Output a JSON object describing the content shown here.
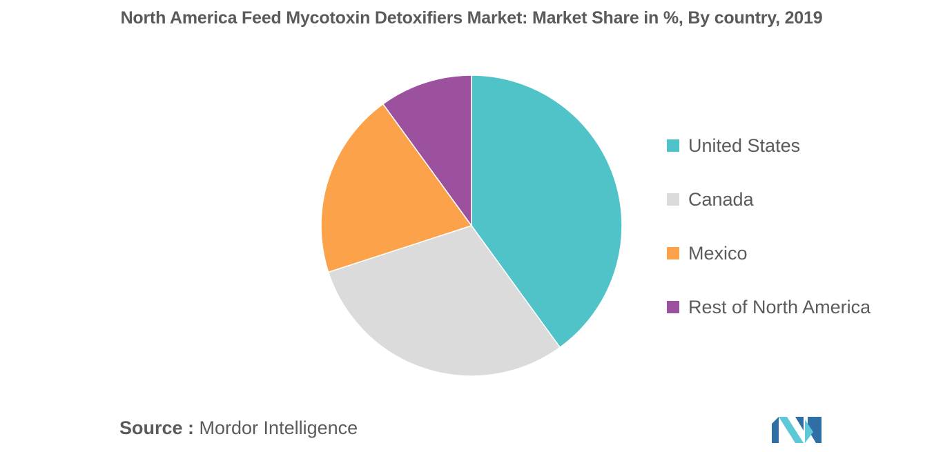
{
  "chart_data": {
    "type": "pie",
    "title": "North America Feed Mycotoxin Detoxifiers Market: Market Share in %, By country, 2019",
    "categories": [
      "United States",
      "Canada",
      "Mexico",
      "Rest of North America"
    ],
    "values": [
      40,
      30,
      20,
      10
    ],
    "unit": "%",
    "colors": [
      "#4fc3c8",
      "#dbdbdb",
      "#fba24b",
      "#9b519e"
    ],
    "legend_position": "right"
  },
  "source": {
    "prefix": "Source : ",
    "text": "Mordor Intelligence"
  },
  "logo": {
    "icon": "mordor-intelligence-logo",
    "colors": [
      "#2f6fa6",
      "#5cc8d8"
    ]
  }
}
